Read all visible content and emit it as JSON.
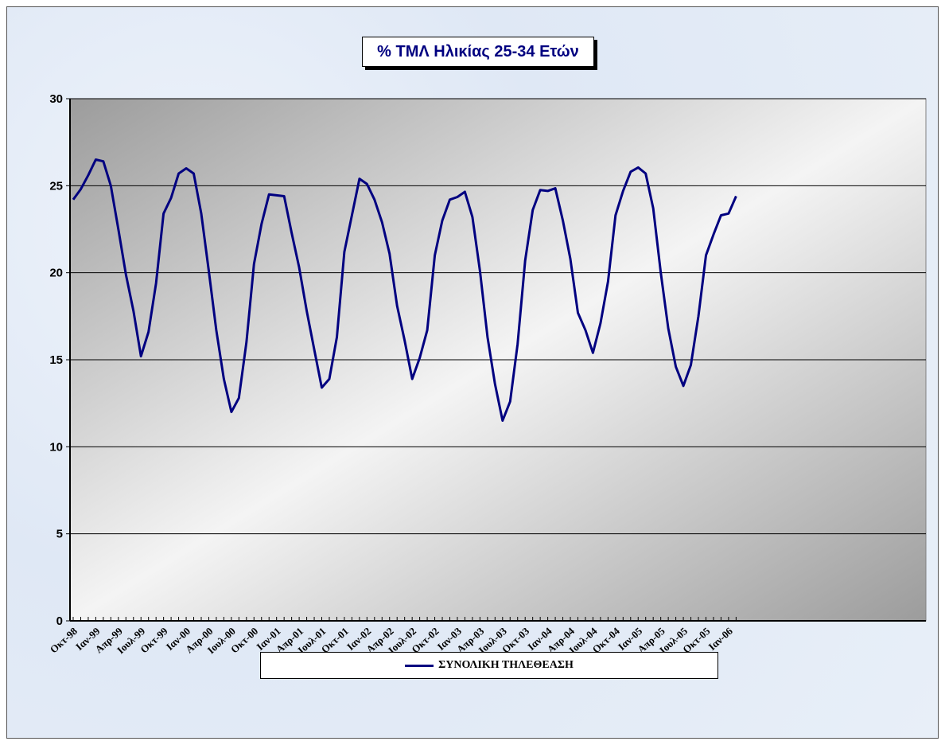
{
  "chart_data": {
    "type": "line",
    "title": "% ΤΜΛ Ηλικίας 25-34 Ετών",
    "xlabel": "",
    "ylabel": "",
    "ylim": [
      0,
      30
    ],
    "yticks": [
      0,
      5,
      10,
      15,
      20,
      25,
      30
    ],
    "grid": true,
    "legend_position": "bottom",
    "line_color": "#000080",
    "x_start": "Οκτ-98",
    "x_tick_labels": [
      "Οκτ-98",
      "Ιαν-99",
      "Απρ-99",
      "Ιουλ-99",
      "Οκτ-99",
      "Ιαν-00",
      "Απρ-00",
      "Ιουλ-00",
      "Οκτ-00",
      "Ιαν-01",
      "Απρ-01",
      "Ιουλ-01",
      "Οκτ-01",
      "Ιαν-02",
      "Απρ-02",
      "Ιουλ-02",
      "Οκτ-02",
      "Ιαν-03",
      "Απρ-03",
      "Ιουλ-03",
      "Οκτ-03",
      "Ιαν-04",
      "Απρ-04",
      "Ιουλ-04",
      "Οκτ-04",
      "Ιαν-05",
      "Απρ-05",
      "Ιουλ-05",
      "Οκτ-05",
      "Ιαν-06"
    ],
    "series": [
      {
        "name": "ΣΥΝΟΛΙΚΗ ΤΗΛΕΘΕΑΣΗ",
        "values": [
          24.2,
          24.8,
          25.6,
          26.5,
          26.4,
          25.0,
          22.5,
          19.9,
          17.8,
          15.2,
          16.6,
          19.4,
          23.4,
          24.3,
          25.7,
          26.0,
          25.7,
          23.4,
          20.1,
          16.7,
          13.9,
          12.0,
          12.8,
          16.0,
          20.5,
          22.8,
          24.5,
          24.45,
          24.4,
          22.3,
          20.3,
          17.8,
          15.6,
          13.4,
          13.9,
          16.3,
          21.2,
          23.3,
          25.4,
          25.1,
          24.2,
          22.9,
          21.1,
          18.1,
          16.1,
          13.9,
          15.1,
          16.7,
          21.0,
          23.0,
          24.2,
          24.35,
          24.65,
          23.2,
          20.1,
          16.3,
          13.6,
          11.5,
          12.6,
          15.9,
          20.7,
          23.6,
          24.75,
          24.7,
          24.85,
          23.0,
          20.8,
          17.7,
          16.7,
          15.4,
          17.1,
          19.5,
          23.3,
          24.7,
          25.8,
          26.05,
          25.7,
          23.7,
          20.0,
          16.8,
          14.6,
          13.5,
          14.7,
          17.5,
          21.0,
          22.2,
          23.3,
          23.4,
          24.4
        ]
      }
    ]
  }
}
